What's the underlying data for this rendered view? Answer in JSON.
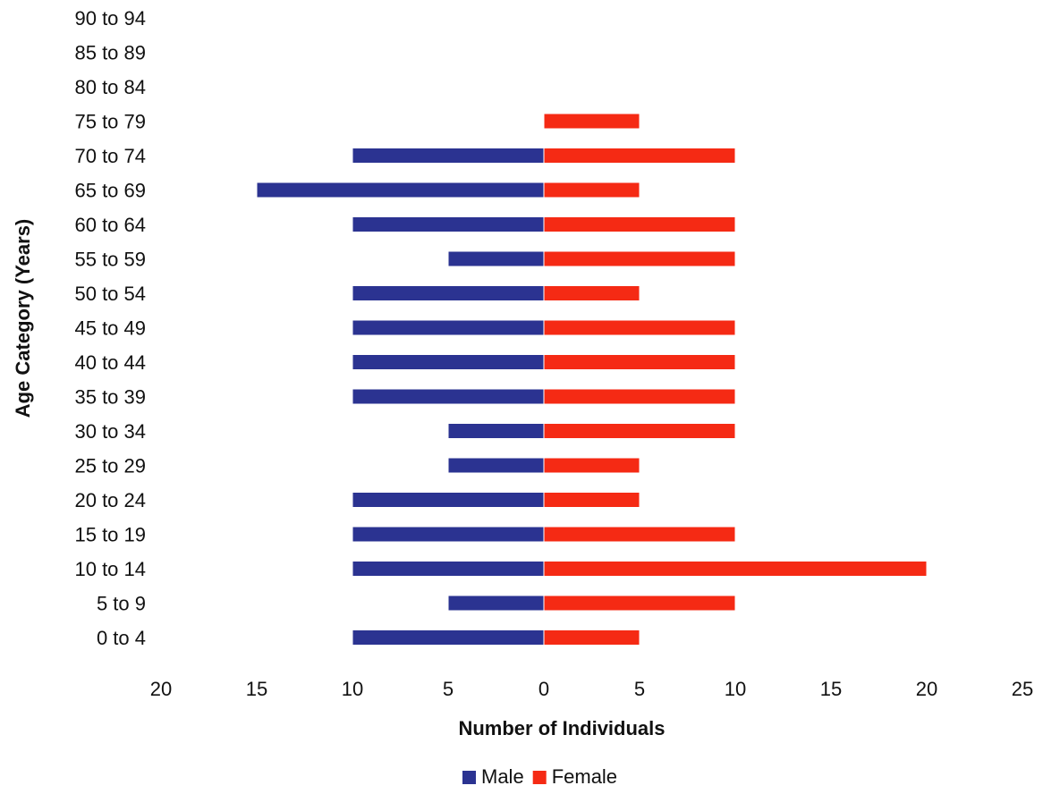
{
  "chart_data": {
    "type": "bar",
    "orientation": "horizontal",
    "title": "",
    "xlabel": "Number of Individuals",
    "ylabel": "Age Category (Years)",
    "xlim": [
      -20,
      25
    ],
    "x_ticks": [
      -20,
      -15,
      -10,
      -5,
      0,
      5,
      10,
      15,
      20,
      25
    ],
    "x_tick_labels": [
      "20",
      "15",
      "10",
      "5",
      "0",
      "5",
      "10",
      "15",
      "20",
      "25"
    ],
    "grid": false,
    "legend_position": "bottom",
    "categories": [
      "0 to 4",
      "5 to 9",
      "10 to 14",
      "15 to 19",
      "20 to 24",
      "25 to 29",
      "30 to 34",
      "35 to 39",
      "40 to 44",
      "45 to 49",
      "50 to 54",
      "55 to 59",
      "60 to 64",
      "65 to 69",
      "70 to 74",
      "75 to 79",
      "80 to 84",
      "85 to 89",
      "90 to 94"
    ],
    "series": [
      {
        "name": "Male",
        "color": "#2b3391",
        "direction": "left",
        "values": [
          10,
          5,
          10,
          10,
          10,
          5,
          5,
          10,
          10,
          10,
          10,
          5,
          10,
          15,
          10,
          0,
          0,
          0,
          0
        ]
      },
      {
        "name": "Female",
        "color": "#f52a14",
        "direction": "right",
        "values": [
          5,
          10,
          20,
          10,
          5,
          5,
          10,
          10,
          10,
          10,
          5,
          10,
          10,
          5,
          10,
          5,
          0,
          0,
          0
        ]
      }
    ]
  }
}
